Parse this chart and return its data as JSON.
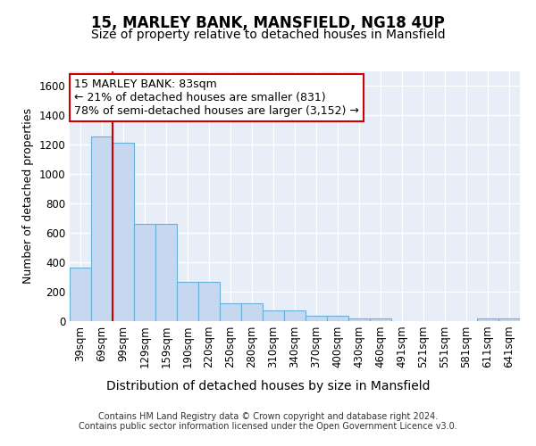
{
  "title": "15, MARLEY BANK, MANSFIELD, NG18 4UP",
  "subtitle": "Size of property relative to detached houses in Mansfield",
  "xlabel": "Distribution of detached houses by size in Mansfield",
  "ylabel": "Number of detached properties",
  "categories": [
    "39sqm",
    "69sqm",
    "99sqm",
    "129sqm",
    "159sqm",
    "190sqm",
    "220sqm",
    "250sqm",
    "280sqm",
    "310sqm",
    "340sqm",
    "370sqm",
    "400sqm",
    "430sqm",
    "460sqm",
    "491sqm",
    "521sqm",
    "551sqm",
    "581sqm",
    "611sqm",
    "641sqm"
  ],
  "values": [
    365,
    1255,
    1215,
    660,
    660,
    270,
    270,
    120,
    120,
    75,
    75,
    35,
    35,
    18,
    18,
    0,
    0,
    0,
    0,
    18,
    18
  ],
  "bar_color": "#c5d8f0",
  "bar_edge_color": "#6baed6",
  "red_line_x": 1.5,
  "annotation_line1": "15 MARLEY BANK: 83sqm",
  "annotation_line2": "← 21% of detached houses are smaller (831)",
  "annotation_line3": "78% of semi-detached houses are larger (3,152) →",
  "annotation_box_facecolor": "#ffffff",
  "annotation_box_edgecolor": "#cc0000",
  "footer": "Contains HM Land Registry data © Crown copyright and database right 2024.\nContains public sector information licensed under the Open Government Licence v3.0.",
  "ylim": [
    0,
    1700
  ],
  "yticks": [
    0,
    200,
    400,
    600,
    800,
    1000,
    1200,
    1400,
    1600
  ],
  "fig_bg_color": "#ffffff",
  "plot_bg_color": "#e8eef8",
  "grid_color": "#ffffff",
  "title_fontsize": 12,
  "subtitle_fontsize": 10,
  "xlabel_fontsize": 10,
  "ylabel_fontsize": 9,
  "tick_fontsize": 8.5,
  "footer_fontsize": 7,
  "annotation_fontsize": 9
}
